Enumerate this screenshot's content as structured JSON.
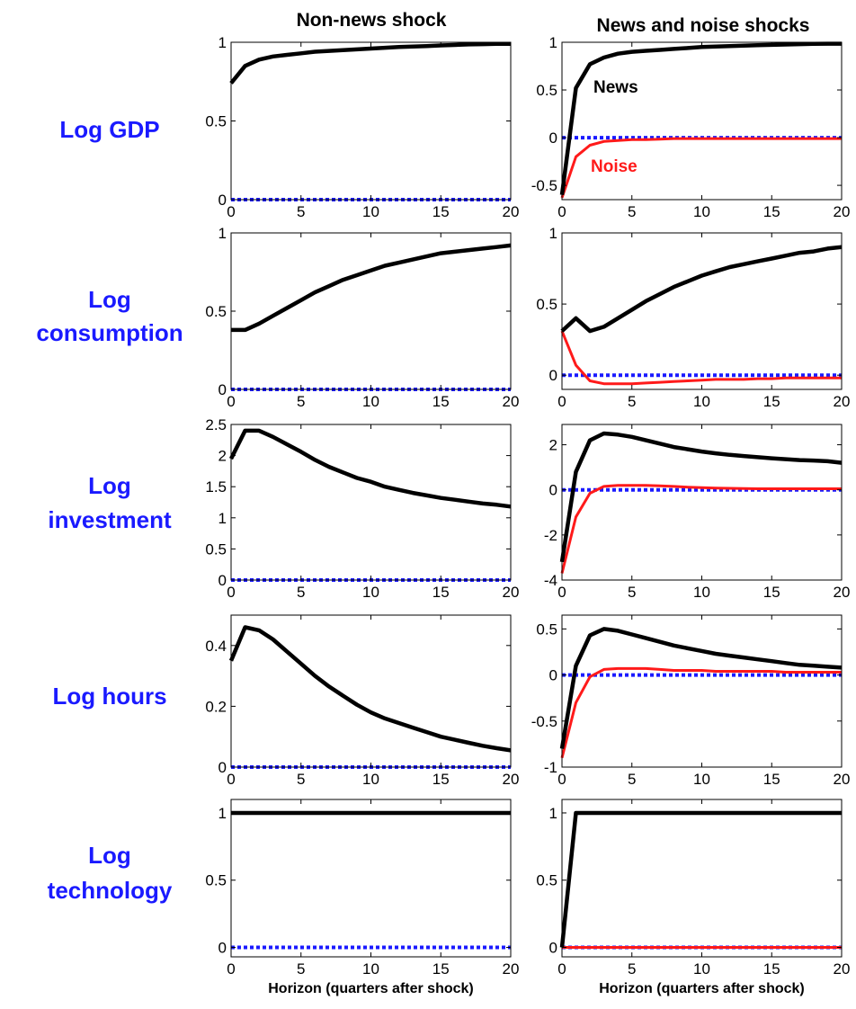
{
  "column_titles": [
    "Non-news shock",
    "News and noise shocks"
  ],
  "row_labels": [
    [
      "Log GDP"
    ],
    [
      "Log",
      "consumption"
    ],
    [
      "Log",
      "investment"
    ],
    [
      "Log hours"
    ],
    [
      "Log",
      "technology"
    ]
  ],
  "colors": {
    "news": "#000000",
    "noise": "#ff1a1a",
    "zero": "#1a1aff",
    "row_label": "#1a1aff"
  },
  "chart_data": [
    {
      "type": "line",
      "panel": "Log GDP - Non-news shock",
      "x": [
        0,
        1,
        2,
        3,
        4,
        5,
        6,
        7,
        8,
        9,
        10,
        11,
        12,
        13,
        14,
        15,
        16,
        17,
        18,
        19,
        20
      ],
      "xlim": [
        0,
        20
      ],
      "ylim": [
        0,
        1
      ],
      "xticks": [
        "0",
        "5",
        "10",
        "15",
        "20"
      ],
      "yticks": [
        "0",
        "0.5",
        "1"
      ],
      "xlabel": "",
      "ylabel": "",
      "series": [
        {
          "values": [
            0.74,
            0.85,
            0.89,
            0.91,
            0.92,
            0.93,
            0.94,
            0.945,
            0.95,
            0.955,
            0.96,
            0.965,
            0.97,
            0.973,
            0.976,
            0.98,
            0.983,
            0.986,
            0.988,
            0.99,
            0.99
          ],
          "color": "#000000",
          "style": "solid"
        },
        {
          "values": [
            0,
            0,
            0,
            0,
            0,
            0,
            0,
            0,
            0,
            0,
            0,
            0,
            0,
            0,
            0,
            0,
            0,
            0,
            0,
            0,
            0
          ],
          "color": "#1a1aff",
          "style": "dotted"
        }
      ]
    },
    {
      "type": "line",
      "panel": "Log GDP - News and noise shocks",
      "x": [
        0,
        1,
        2,
        3,
        4,
        5,
        6,
        7,
        8,
        9,
        10,
        11,
        12,
        13,
        14,
        15,
        16,
        17,
        18,
        19,
        20
      ],
      "xlim": [
        0,
        20
      ],
      "ylim": [
        -0.65,
        1
      ],
      "xticks": [
        "0",
        "5",
        "10",
        "15",
        "20"
      ],
      "yticks": [
        "-0.5",
        "0",
        "0.5",
        "1"
      ],
      "xlabel": "",
      "ylabel": "",
      "annotations": [
        {
          "text": "News",
          "color": "#000000"
        },
        {
          "text": "Noise",
          "color": "#ff1a1a"
        }
      ],
      "series": [
        {
          "name": "News",
          "values": [
            -0.6,
            0.52,
            0.77,
            0.84,
            0.88,
            0.9,
            0.91,
            0.92,
            0.93,
            0.94,
            0.95,
            0.955,
            0.96,
            0.965,
            0.97,
            0.973,
            0.976,
            0.98,
            0.983,
            0.985,
            0.985
          ],
          "color": "#000000",
          "style": "solid"
        },
        {
          "name": "Noise",
          "values": [
            -0.63,
            -0.2,
            -0.08,
            -0.04,
            -0.03,
            -0.02,
            -0.02,
            -0.015,
            -0.01,
            -0.01,
            -0.01,
            -0.01,
            -0.01,
            -0.01,
            -0.01,
            -0.01,
            -0.01,
            -0.01,
            -0.01,
            -0.01,
            -0.01
          ],
          "color": "#ff1a1a",
          "style": "solid"
        },
        {
          "values": [
            0,
            0,
            0,
            0,
            0,
            0,
            0,
            0,
            0,
            0,
            0,
            0,
            0,
            0,
            0,
            0,
            0,
            0,
            0,
            0,
            0
          ],
          "color": "#1a1aff",
          "style": "dotted"
        }
      ]
    },
    {
      "type": "line",
      "panel": "Log consumption - Non-news shock",
      "x": [
        0,
        1,
        2,
        3,
        4,
        5,
        6,
        7,
        8,
        9,
        10,
        11,
        12,
        13,
        14,
        15,
        16,
        17,
        18,
        19,
        20
      ],
      "xlim": [
        0,
        20
      ],
      "ylim": [
        0,
        1
      ],
      "xticks": [
        "0",
        "5",
        "10",
        "15",
        "20"
      ],
      "yticks": [
        "0",
        "0.5",
        "1"
      ],
      "xlabel": "",
      "ylabel": "",
      "series": [
        {
          "values": [
            0.38,
            0.38,
            0.42,
            0.47,
            0.52,
            0.57,
            0.62,
            0.66,
            0.7,
            0.73,
            0.76,
            0.79,
            0.81,
            0.83,
            0.85,
            0.87,
            0.88,
            0.89,
            0.9,
            0.91,
            0.92
          ],
          "color": "#000000",
          "style": "solid"
        },
        {
          "values": [
            0,
            0,
            0,
            0,
            0,
            0,
            0,
            0,
            0,
            0,
            0,
            0,
            0,
            0,
            0,
            0,
            0,
            0,
            0,
            0,
            0
          ],
          "color": "#1a1aff",
          "style": "dotted"
        }
      ]
    },
    {
      "type": "line",
      "panel": "Log consumption - News and noise shocks",
      "x": [
        0,
        1,
        2,
        3,
        4,
        5,
        6,
        7,
        8,
        9,
        10,
        11,
        12,
        13,
        14,
        15,
        16,
        17,
        18,
        19,
        20
      ],
      "xlim": [
        0,
        20
      ],
      "ylim": [
        -0.1,
        1
      ],
      "xticks": [
        "0",
        "5",
        "10",
        "15",
        "20"
      ],
      "yticks": [
        "0",
        "0.5",
        "1"
      ],
      "xlabel": "",
      "ylabel": "",
      "series": [
        {
          "name": "News",
          "values": [
            0.31,
            0.4,
            0.31,
            0.34,
            0.4,
            0.46,
            0.52,
            0.57,
            0.62,
            0.66,
            0.7,
            0.73,
            0.76,
            0.78,
            0.8,
            0.82,
            0.84,
            0.86,
            0.87,
            0.89,
            0.9
          ],
          "color": "#000000",
          "style": "solid"
        },
        {
          "name": "Noise",
          "values": [
            0.31,
            0.07,
            -0.04,
            -0.06,
            -0.06,
            -0.06,
            -0.055,
            -0.05,
            -0.045,
            -0.04,
            -0.035,
            -0.03,
            -0.03,
            -0.03,
            -0.025,
            -0.025,
            -0.02,
            -0.02,
            -0.02,
            -0.02,
            -0.02
          ],
          "color": "#ff1a1a",
          "style": "solid"
        },
        {
          "values": [
            0,
            0,
            0,
            0,
            0,
            0,
            0,
            0,
            0,
            0,
            0,
            0,
            0,
            0,
            0,
            0,
            0,
            0,
            0,
            0,
            0
          ],
          "color": "#1a1aff",
          "style": "dotted"
        }
      ]
    },
    {
      "type": "line",
      "panel": "Log investment - Non-news shock",
      "x": [
        0,
        1,
        2,
        3,
        4,
        5,
        6,
        7,
        8,
        9,
        10,
        11,
        12,
        13,
        14,
        15,
        16,
        17,
        18,
        19,
        20
      ],
      "xlim": [
        0,
        20
      ],
      "ylim": [
        0,
        2.5
      ],
      "xticks": [
        "0",
        "5",
        "10",
        "15",
        "20"
      ],
      "yticks": [
        "0",
        "0.5",
        "1",
        "1.5",
        "2",
        "2.5"
      ],
      "xlabel": "",
      "ylabel": "",
      "series": [
        {
          "values": [
            1.95,
            2.4,
            2.4,
            2.3,
            2.18,
            2.06,
            1.93,
            1.82,
            1.73,
            1.64,
            1.58,
            1.5,
            1.45,
            1.4,
            1.36,
            1.32,
            1.29,
            1.26,
            1.23,
            1.21,
            1.18
          ],
          "color": "#000000",
          "style": "solid"
        },
        {
          "values": [
            0,
            0,
            0,
            0,
            0,
            0,
            0,
            0,
            0,
            0,
            0,
            0,
            0,
            0,
            0,
            0,
            0,
            0,
            0,
            0,
            0
          ],
          "color": "#1a1aff",
          "style": "dotted"
        }
      ]
    },
    {
      "type": "line",
      "panel": "Log investment - News and noise shocks",
      "x": [
        0,
        1,
        2,
        3,
        4,
        5,
        6,
        7,
        8,
        9,
        10,
        11,
        12,
        13,
        14,
        15,
        16,
        17,
        18,
        19,
        20
      ],
      "xlim": [
        0,
        20
      ],
      "ylim": [
        -4,
        2.9
      ],
      "xticks": [
        "0",
        "5",
        "10",
        "15",
        "20"
      ],
      "yticks": [
        "-4",
        "-2",
        "0",
        "2"
      ],
      "xlabel": "",
      "ylabel": "",
      "series": [
        {
          "name": "News",
          "values": [
            -3.2,
            0.8,
            2.2,
            2.5,
            2.45,
            2.35,
            2.2,
            2.05,
            1.9,
            1.8,
            1.7,
            1.62,
            1.55,
            1.5,
            1.45,
            1.4,
            1.36,
            1.32,
            1.3,
            1.27,
            1.2
          ],
          "color": "#000000",
          "style": "solid"
        },
        {
          "name": "Noise",
          "values": [
            -3.7,
            -1.2,
            -0.15,
            0.15,
            0.2,
            0.2,
            0.2,
            0.18,
            0.15,
            0.12,
            0.1,
            0.08,
            0.07,
            0.06,
            0.05,
            0.05,
            0.05,
            0.05,
            0.05,
            0.05,
            0.05
          ],
          "color": "#ff1a1a",
          "style": "solid"
        },
        {
          "values": [
            0,
            0,
            0,
            0,
            0,
            0,
            0,
            0,
            0,
            0,
            0,
            0,
            0,
            0,
            0,
            0,
            0,
            0,
            0,
            0,
            0
          ],
          "color": "#1a1aff",
          "style": "dotted"
        }
      ]
    },
    {
      "type": "line",
      "panel": "Log hours - Non-news shock",
      "x": [
        0,
        1,
        2,
        3,
        4,
        5,
        6,
        7,
        8,
        9,
        10,
        11,
        12,
        13,
        14,
        15,
        16,
        17,
        18,
        19,
        20
      ],
      "xlim": [
        0,
        20
      ],
      "ylim": [
        0,
        0.5
      ],
      "xticks": [
        "0",
        "5",
        "10",
        "15",
        "20"
      ],
      "yticks": [
        "0",
        "0.2",
        "0.4"
      ],
      "xlabel": "",
      "ylabel": "",
      "series": [
        {
          "values": [
            0.35,
            0.46,
            0.45,
            0.42,
            0.38,
            0.34,
            0.3,
            0.265,
            0.235,
            0.205,
            0.18,
            0.16,
            0.145,
            0.13,
            0.115,
            0.1,
            0.09,
            0.08,
            0.07,
            0.062,
            0.055
          ],
          "color": "#000000",
          "style": "solid"
        },
        {
          "values": [
            0,
            0,
            0,
            0,
            0,
            0,
            0,
            0,
            0,
            0,
            0,
            0,
            0,
            0,
            0,
            0,
            0,
            0,
            0,
            0,
            0
          ],
          "color": "#1a1aff",
          "style": "dotted"
        }
      ]
    },
    {
      "type": "line",
      "panel": "Log hours - News and noise shocks",
      "x": [
        0,
        1,
        2,
        3,
        4,
        5,
        6,
        7,
        8,
        9,
        10,
        11,
        12,
        13,
        14,
        15,
        16,
        17,
        18,
        19,
        20
      ],
      "xlim": [
        0,
        20
      ],
      "ylim": [
        -1,
        0.65
      ],
      "xticks": [
        "0",
        "5",
        "10",
        "15",
        "20"
      ],
      "yticks": [
        "-1",
        "-0.5",
        "0",
        "0.5"
      ],
      "xlabel": "",
      "ylabel": "",
      "series": [
        {
          "name": "News",
          "values": [
            -0.8,
            0.1,
            0.43,
            0.5,
            0.48,
            0.44,
            0.4,
            0.36,
            0.32,
            0.29,
            0.26,
            0.23,
            0.21,
            0.19,
            0.17,
            0.15,
            0.13,
            0.11,
            0.1,
            0.09,
            0.08
          ],
          "color": "#000000",
          "style": "solid"
        },
        {
          "name": "Noise",
          "values": [
            -0.9,
            -0.3,
            -0.02,
            0.06,
            0.07,
            0.07,
            0.07,
            0.06,
            0.05,
            0.05,
            0.05,
            0.04,
            0.04,
            0.04,
            0.04,
            0.04,
            0.03,
            0.03,
            0.03,
            0.03,
            0.03
          ],
          "color": "#ff1a1a",
          "style": "solid"
        },
        {
          "values": [
            0,
            0,
            0,
            0,
            0,
            0,
            0,
            0,
            0,
            0,
            0,
            0,
            0,
            0,
            0,
            0,
            0,
            0,
            0,
            0,
            0
          ],
          "color": "#1a1aff",
          "style": "dotted"
        }
      ]
    },
    {
      "type": "line",
      "panel": "Log technology - Non-news shock",
      "x": [
        0,
        1,
        2,
        3,
        4,
        5,
        6,
        7,
        8,
        9,
        10,
        11,
        12,
        13,
        14,
        15,
        16,
        17,
        18,
        19,
        20
      ],
      "xlim": [
        0,
        20
      ],
      "ylim": [
        -0.07,
        1.1
      ],
      "xticks": [
        "0",
        "5",
        "10",
        "15",
        "20"
      ],
      "yticks": [
        "0",
        "0.5",
        "1"
      ],
      "xlabel": "Horizon (quarters after shock)",
      "ylabel": "",
      "series": [
        {
          "values": [
            1,
            1,
            1,
            1,
            1,
            1,
            1,
            1,
            1,
            1,
            1,
            1,
            1,
            1,
            1,
            1,
            1,
            1,
            1,
            1,
            1
          ],
          "color": "#000000",
          "style": "solid"
        },
        {
          "values": [
            0,
            0,
            0,
            0,
            0,
            0,
            0,
            0,
            0,
            0,
            0,
            0,
            0,
            0,
            0,
            0,
            0,
            0,
            0,
            0,
            0
          ],
          "color": "#1a1aff",
          "style": "dotted"
        }
      ]
    },
    {
      "type": "line",
      "panel": "Log technology - News and noise shocks",
      "x": [
        0,
        1,
        2,
        3,
        4,
        5,
        6,
        7,
        8,
        9,
        10,
        11,
        12,
        13,
        14,
        15,
        16,
        17,
        18,
        19,
        20
      ],
      "xlim": [
        0,
        20
      ],
      "ylim": [
        -0.07,
        1.1
      ],
      "xticks": [
        "0",
        "5",
        "10",
        "15",
        "20"
      ],
      "yticks": [
        "0",
        "0.5",
        "1"
      ],
      "xlabel": "Horizon (quarters after shock)",
      "ylabel": "",
      "series": [
        {
          "name": "News",
          "values": [
            0,
            1,
            1,
            1,
            1,
            1,
            1,
            1,
            1,
            1,
            1,
            1,
            1,
            1,
            1,
            1,
            1,
            1,
            1,
            1,
            1
          ],
          "color": "#000000",
          "style": "solid"
        },
        {
          "name": "Noise",
          "values": [
            0,
            0,
            0,
            0,
            0,
            0,
            0,
            0,
            0,
            0,
            0,
            0,
            0,
            0,
            0,
            0,
            0,
            0,
            0,
            0,
            0
          ],
          "color": "#ff1a1a",
          "style": "solid"
        },
        {
          "values": [
            0,
            0,
            0,
            0,
            0,
            0,
            0,
            0,
            0,
            0,
            0,
            0,
            0,
            0,
            0,
            0,
            0,
            0,
            0,
            0,
            0
          ],
          "color": "#1a1aff",
          "style": "dotted"
        }
      ]
    }
  ]
}
